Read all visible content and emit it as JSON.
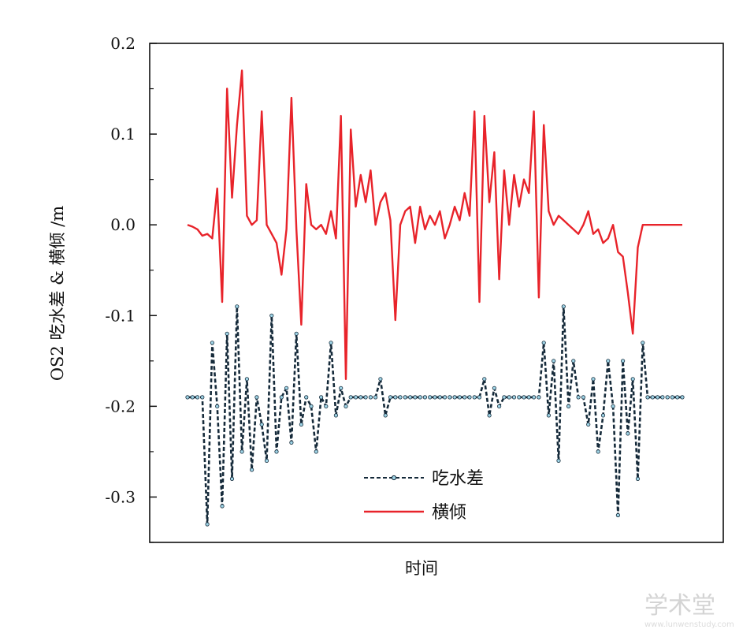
{
  "chart_data": {
    "type": "line",
    "xlabel": "时间",
    "ylabel": "OS2 吃水差 & 横倾 /m",
    "ylim": [
      -0.35,
      0.2
    ],
    "y_ticks": [
      "0.2",
      "0.1",
      "0.0",
      "-0.1",
      "-0.2",
      "-0.3"
    ],
    "x_ticks_labeled": false,
    "grid": false,
    "legend_position": "lower-center",
    "series": [
      {
        "name": "横倾",
        "color": "#e8232a",
        "x": [
          0,
          1,
          2,
          3,
          4,
          5,
          6,
          7,
          8,
          9,
          10,
          11,
          12,
          13,
          14,
          15,
          16,
          17,
          18,
          19,
          20,
          21,
          22,
          23,
          24,
          25,
          26,
          27,
          28,
          29,
          30,
          31,
          32,
          33,
          34,
          35,
          36,
          37,
          38,
          39,
          40,
          41,
          42,
          43,
          44,
          45,
          46,
          47,
          48,
          49,
          50,
          51,
          52,
          53,
          54,
          55,
          56,
          57,
          58,
          59,
          60,
          61,
          62,
          63,
          64,
          65,
          66,
          67,
          68,
          69,
          70,
          71,
          72,
          73,
          74,
          75,
          76,
          77,
          78,
          79,
          80,
          81,
          82,
          83,
          84,
          85,
          86,
          87,
          88,
          89,
          90,
          91,
          92,
          93,
          94,
          95,
          96,
          97,
          98,
          99,
          100
        ],
        "values": [
          0.0,
          -0.002,
          -0.005,
          -0.012,
          -0.01,
          -0.015,
          0.04,
          -0.085,
          0.15,
          0.03,
          0.11,
          0.17,
          0.01,
          0.0,
          0.005,
          0.125,
          0.0,
          -0.01,
          -0.02,
          -0.055,
          -0.005,
          0.14,
          -0.005,
          -0.11,
          0.045,
          0.0,
          -0.005,
          0.0,
          -0.01,
          0.015,
          -0.015,
          0.12,
          -0.17,
          0.105,
          0.02,
          0.055,
          0.025,
          0.06,
          0.0,
          0.025,
          0.035,
          0.005,
          -0.105,
          0.0,
          0.015,
          0.02,
          -0.02,
          0.02,
          -0.005,
          0.01,
          0.0,
          0.015,
          -0.015,
          0.0,
          0.02,
          0.005,
          0.035,
          0.01,
          0.125,
          -0.085,
          0.12,
          0.025,
          0.08,
          -0.06,
          0.06,
          0.0,
          0.055,
          0.02,
          0.05,
          0.035,
          0.125,
          -0.08,
          0.11,
          0.015,
          0.0,
          0.01,
          0.005,
          0.0,
          -0.005,
          -0.01,
          0.0,
          0.015,
          -0.01,
          -0.005,
          -0.02,
          -0.015,
          0.0,
          -0.03,
          -0.035,
          -0.075,
          -0.12,
          -0.025,
          0.0,
          0.0,
          0.0,
          0.0,
          0.0,
          0.0,
          0.0,
          0.0,
          0.0
        ]
      },
      {
        "name": "吃水差",
        "color": "#152a3a",
        "x": [
          0,
          1,
          2,
          3,
          4,
          5,
          6,
          7,
          8,
          9,
          10,
          11,
          12,
          13,
          14,
          15,
          16,
          17,
          18,
          19,
          20,
          21,
          22,
          23,
          24,
          25,
          26,
          27,
          28,
          29,
          30,
          31,
          32,
          33,
          34,
          35,
          36,
          37,
          38,
          39,
          40,
          41,
          42,
          43,
          44,
          45,
          46,
          47,
          48,
          49,
          50,
          51,
          52,
          53,
          54,
          55,
          56,
          57,
          58,
          59,
          60,
          61,
          62,
          63,
          64,
          65,
          66,
          67,
          68,
          69,
          70,
          71,
          72,
          73,
          74,
          75,
          76,
          77,
          78,
          79,
          80,
          81,
          82,
          83,
          84,
          85,
          86,
          87,
          88,
          89,
          90,
          91,
          92,
          93,
          94,
          95,
          96,
          97,
          98,
          99,
          100
        ],
        "values": [
          -0.19,
          -0.19,
          -0.19,
          -0.19,
          -0.33,
          -0.13,
          -0.2,
          -0.31,
          -0.12,
          -0.28,
          -0.09,
          -0.25,
          -0.17,
          -0.27,
          -0.19,
          -0.22,
          -0.26,
          -0.1,
          -0.25,
          -0.19,
          -0.18,
          -0.24,
          -0.12,
          -0.22,
          -0.19,
          -0.2,
          -0.25,
          -0.19,
          -0.2,
          -0.13,
          -0.21,
          -0.18,
          -0.2,
          -0.19,
          -0.19,
          -0.19,
          -0.19,
          -0.19,
          -0.19,
          -0.17,
          -0.21,
          -0.19,
          -0.19,
          -0.19,
          -0.19,
          -0.19,
          -0.19,
          -0.19,
          -0.19,
          -0.19,
          -0.19,
          -0.19,
          -0.19,
          -0.19,
          -0.19,
          -0.19,
          -0.19,
          -0.19,
          -0.19,
          -0.19,
          -0.17,
          -0.21,
          -0.18,
          -0.2,
          -0.19,
          -0.19,
          -0.19,
          -0.19,
          -0.19,
          -0.19,
          -0.19,
          -0.19,
          -0.13,
          -0.21,
          -0.15,
          -0.26,
          -0.09,
          -0.2,
          -0.15,
          -0.19,
          -0.19,
          -0.22,
          -0.17,
          -0.25,
          -0.21,
          -0.15,
          -0.2,
          -0.32,
          -0.15,
          -0.23,
          -0.17,
          -0.28,
          -0.13,
          -0.19,
          -0.19,
          -0.19,
          -0.19,
          -0.19,
          -0.19,
          -0.19,
          -0.19
        ]
      }
    ]
  },
  "watermark": {
    "text": "学术堂",
    "url": "www.lunwenstudy.com"
  }
}
